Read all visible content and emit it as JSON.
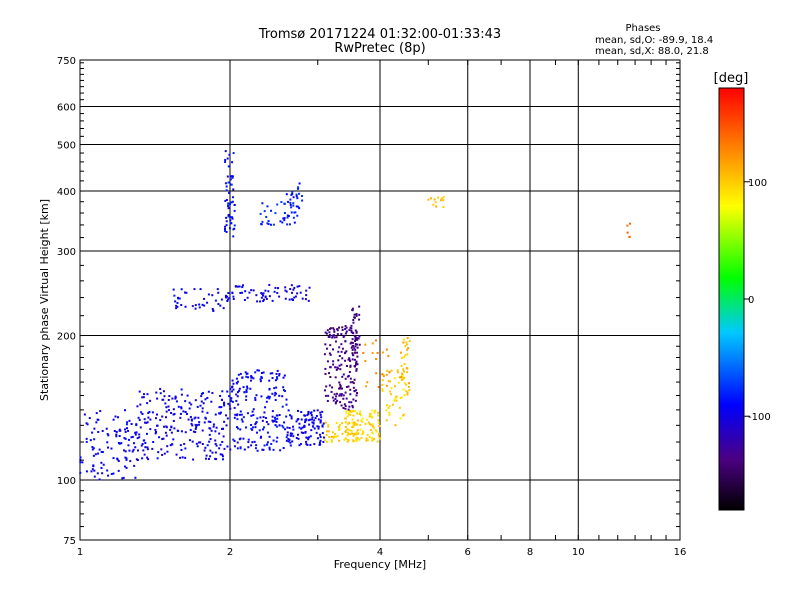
{
  "chart_data": {
    "type": "scatter",
    "title": "Tromsø 20171224 01:32:00-01:33:43",
    "subtitle": "RwPretec (8p)",
    "xlabel": "Frequency [MHz]",
    "ylabel": "Stationary phase Virtual Height [km]",
    "x_scale": "log",
    "y_scale": "log",
    "xlim": [
      1,
      16
    ],
    "ylim": [
      75,
      750
    ],
    "x_ticks": [
      1,
      2,
      4,
      6,
      8,
      10,
      16
    ],
    "x_tick_labels": [
      "1",
      "2",
      "4",
      "6",
      "8",
      "10",
      "16"
    ],
    "y_ticks": [
      75,
      100,
      200,
      300,
      400,
      500,
      600,
      750
    ],
    "y_tick_labels": [
      "75",
      "100",
      "200",
      "300",
      "400",
      "500",
      "600",
      "750"
    ],
    "grid": true,
    "phase_stats": {
      "heading": "Phases",
      "line_o": "mean, sd,O: -89.9, 18.4",
      "line_x": "mean, sd,X: 88.0, 21.8"
    },
    "colorbar": {
      "label": "[deg]",
      "range": [
        -180,
        180
      ],
      "ticks": [
        100,
        0,
        -100
      ],
      "tick_labels": [
        "100",
        "0",
        "-100"
      ]
    },
    "clusters": [
      {
        "f": [
          1.0,
          1.3
        ],
        "h": [
          100,
          140
        ],
        "phase": [
          -105,
          -85
        ],
        "n": 110
      },
      {
        "f": [
          1.3,
          2.0
        ],
        "h": [
          110,
          155
        ],
        "phase": [
          -110,
          -85
        ],
        "n": 240
      },
      {
        "f": [
          2.0,
          2.6
        ],
        "h": [
          115,
          170
        ],
        "phase": [
          -105,
          -80
        ],
        "n": 200
      },
      {
        "f": [
          2.6,
          3.1
        ],
        "h": [
          118,
          140
        ],
        "phase": [
          -105,
          -85
        ],
        "n": 110
      },
      {
        "f": [
          3.1,
          3.7
        ],
        "h": [
          120,
          132
        ],
        "phase": [
          90,
          110
        ],
        "n": 60
      },
      {
        "f": [
          3.4,
          4.0
        ],
        "h": [
          120,
          140
        ],
        "phase": [
          85,
          105
        ],
        "n": 90
      },
      {
        "f": [
          4.0,
          4.5
        ],
        "h": [
          130,
          170
        ],
        "phase": [
          85,
          110
        ],
        "n": 50
      },
      {
        "f": [
          4.4,
          4.6
        ],
        "h": [
          150,
          200
        ],
        "phase": [
          90,
          120
        ],
        "n": 30
      },
      {
        "f": [
          3.1,
          3.6
        ],
        "h": [
          140,
          210
        ],
        "phase": [
          -150,
          -125
        ],
        "n": 160
      },
      {
        "f": [
          3.5,
          3.65
        ],
        "h": [
          170,
          230
        ],
        "phase": [
          -155,
          -130
        ],
        "n": 50
      },
      {
        "f": [
          3.7,
          4.2
        ],
        "h": [
          155,
          200
        ],
        "phase": [
          115,
          135
        ],
        "n": 20
      },
      {
        "f": [
          1.5,
          2.0
        ],
        "h": [
          225,
          250
        ],
        "phase": [
          -105,
          -85
        ],
        "n": 45
      },
      {
        "f": [
          2.0,
          2.5
        ],
        "h": [
          235,
          255
        ],
        "phase": [
          -110,
          -85
        ],
        "n": 40
      },
      {
        "f": [
          2.5,
          2.9
        ],
        "h": [
          235,
          255
        ],
        "phase": [
          -115,
          -95
        ],
        "n": 25
      },
      {
        "f": [
          1.95,
          2.05
        ],
        "h": [
          320,
          490
        ],
        "phase": [
          -100,
          -75
        ],
        "n": 55
      },
      {
        "f": [
          2.3,
          2.7
        ],
        "h": [
          340,
          380
        ],
        "phase": [
          -90,
          -70
        ],
        "n": 35
      },
      {
        "f": [
          2.6,
          2.8
        ],
        "h": [
          350,
          420
        ],
        "phase": [
          -95,
          -75
        ],
        "n": 25
      },
      {
        "f": [
          5.0,
          5.4
        ],
        "h": [
          370,
          390
        ],
        "phase": [
          95,
          115
        ],
        "n": 12
      },
      {
        "f": [
          12.5,
          12.7
        ],
        "h": [
          320,
          360
        ],
        "phase": [
          130,
          145
        ],
        "n": 5
      }
    ]
  }
}
